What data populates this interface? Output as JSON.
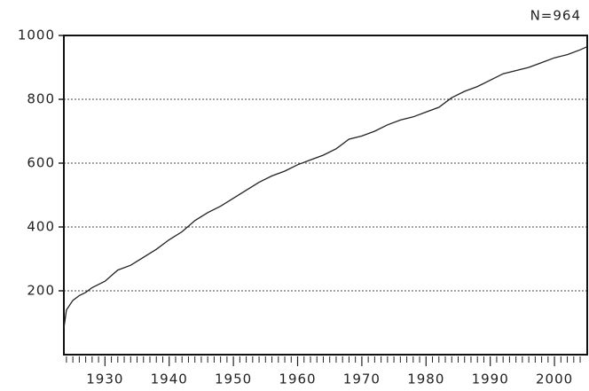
{
  "chart_data": {
    "type": "line",
    "annotation": "N=964",
    "x": [
      1923.6,
      1924,
      1925,
      1926,
      1927,
      1928,
      1929,
      1930,
      1932,
      1934,
      1936,
      1938,
      1940,
      1942,
      1944,
      1946,
      1948,
      1950,
      1952,
      1954,
      1956,
      1958,
      1960,
      1962,
      1964,
      1966,
      1968,
      1970,
      1972,
      1974,
      1976,
      1978,
      1980,
      1982,
      1984,
      1986,
      1988,
      1990,
      1992,
      1994,
      1996,
      1998,
      2000,
      2002,
      2004,
      2005
    ],
    "series": [
      {
        "color": "#222222",
        "values": [
          83,
          140,
          170,
          185,
          195,
          210,
          220,
          230,
          265,
          280,
          305,
          330,
          360,
          385,
          420,
          445,
          465,
          490,
          515,
          540,
          560,
          575,
          595,
          610,
          625,
          645,
          675,
          685,
          700,
          720,
          735,
          745,
          760,
          775,
          805,
          825,
          840,
          860,
          880,
          890,
          900,
          915,
          930,
          940,
          955,
          964
        ]
      }
    ],
    "xlim": [
      1923.6,
      2005.1
    ],
    "xticks": [
      1930,
      1940,
      1950,
      1960,
      1970,
      1980,
      1990,
      2000
    ],
    "xminorticks": [
      1924,
      1925,
      1926,
      1927,
      1928,
      1929,
      1931,
      1932,
      1933,
      1934,
      1935,
      1936,
      1937,
      1938,
      1939,
      1941,
      1942,
      1943,
      1944,
      1945,
      1946,
      1947,
      1948,
      1949,
      1951,
      1952,
      1953,
      1954,
      1955,
      1956,
      1957,
      1958,
      1959,
      1961,
      1962,
      1963,
      1964,
      1965,
      1966,
      1967,
      1968,
      1969,
      1971,
      1972,
      1973,
      1974,
      1975,
      1976,
      1977,
      1978,
      1979,
      1981,
      1982,
      1983,
      1984,
      1985,
      1986,
      1987,
      1988,
      1989,
      1991,
      1992,
      1993,
      1994,
      1995,
      1996,
      1997,
      1998,
      1999,
      2001,
      2002,
      2003,
      2004
    ],
    "ylim": [
      0,
      1000
    ],
    "yticks": [
      200,
      400,
      600,
      800,
      1000
    ],
    "grid": true
  }
}
